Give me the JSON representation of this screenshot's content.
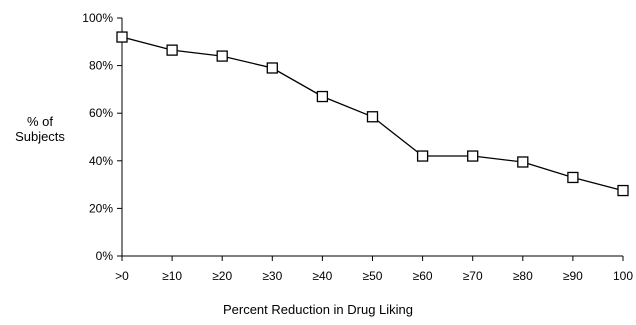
{
  "chart_data": {
    "type": "line",
    "title": "",
    "xlabel": "Percent Reduction in Drug Liking",
    "ylabel_lines": [
      "% of",
      "Subjects"
    ],
    "categories": [
      ">0",
      "≥10",
      "≥20",
      "≥30",
      "≥40",
      "≥50",
      "≥60",
      "≥70",
      "≥80",
      "≥90",
      "100"
    ],
    "series": [
      {
        "values": [
          92,
          86.5,
          84,
          79,
          67,
          58.5,
          42,
          42,
          39.5,
          33,
          27.5
        ]
      }
    ],
    "ylim": [
      0,
      100
    ],
    "yticks": [
      0,
      20,
      40,
      60,
      80,
      100
    ],
    "ytick_suffix": "%",
    "grid": false,
    "marker": "open-square",
    "line_color": "#000000"
  }
}
